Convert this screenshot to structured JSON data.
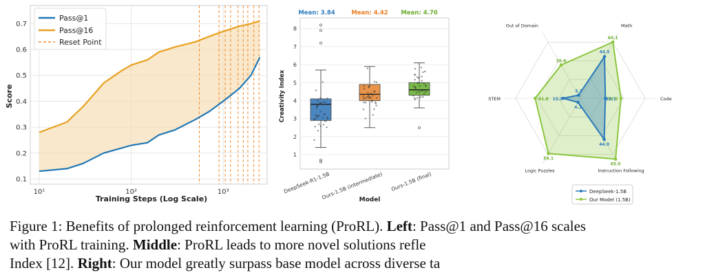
{
  "left_chart": {
    "legend": [
      "Pass@1",
      "Pass@16",
      "Reset Point"
    ],
    "xlabel": "Training Steps (Log Scale)",
    "ylabel": "Score",
    "yticks": [
      "0.1",
      "0.2",
      "0.3",
      "0.4",
      "0.5",
      "0.6",
      "0.7"
    ],
    "xticks": [
      "10¹",
      "10²",
      "10³"
    ]
  },
  "middle_chart": {
    "means": [
      "Mean: 3.84",
      "Mean: 4.42",
      "Mean: 4.70"
    ],
    "xlabel": "Model",
    "ylabel": "Creativity Index",
    "yticks": [
      "1",
      "2",
      "3",
      "4",
      "5",
      "6",
      "7",
      "8"
    ],
    "categories": [
      "DeepSeek-R1-1.5B",
      "Ours-1.5B (intermediate)",
      "Ours-1.5B (final)"
    ]
  },
  "right_chart": {
    "axis_labels": [
      "Math",
      "Code",
      "Instruction Following",
      "Logic Puzzles",
      "STEM",
      "Out of Domain"
    ],
    "ours_value_labels": [
      "60.1",
      "37.5",
      "65.0",
      "59.1",
      "41.8",
      "35.6"
    ],
    "base_value_labels": [
      "44.5",
      "23.1",
      "44.0",
      "4.3",
      "15.9",
      "3.3"
    ],
    "legend": [
      "DeepSeek-1.5B",
      "Our Model (1.5B)"
    ]
  },
  "chart_data": [
    {
      "type": "line",
      "xlabel": "Training Steps (Log Scale)",
      "ylabel": "Score",
      "x_scale": "log",
      "xlim": [
        8,
        3000
      ],
      "ylim": [
        0.08,
        0.77
      ],
      "series": [
        {
          "name": "Pass@1",
          "color": "#1f77b4",
          "x": [
            10,
            20,
            30,
            50,
            80,
            100,
            150,
            200,
            300,
            500,
            700,
            1000,
            1500,
            2000,
            2500
          ],
          "y": [
            0.13,
            0.14,
            0.16,
            0.2,
            0.22,
            0.23,
            0.24,
            0.27,
            0.29,
            0.33,
            0.36,
            0.4,
            0.45,
            0.5,
            0.57
          ]
        },
        {
          "name": "Pass@16",
          "color": "#e8a020",
          "x": [
            10,
            20,
            30,
            40,
            50,
            80,
            100,
            150,
            200,
            300,
            500,
            700,
            1000,
            1500,
            2000,
            2500
          ],
          "y": [
            0.28,
            0.32,
            0.38,
            0.43,
            0.47,
            0.52,
            0.54,
            0.56,
            0.59,
            0.61,
            0.63,
            0.65,
            0.67,
            0.69,
            0.7,
            0.71
          ]
        }
      ],
      "reset_points": [
        550,
        900,
        1050,
        1200,
        1450,
        1650,
        1850,
        2150,
        2450
      ]
    },
    {
      "type": "box",
      "xlabel": "Model",
      "ylabel": "Creativity Index",
      "ylim": [
        0.2,
        8.6
      ],
      "categories": [
        "DeepSeek-R1-1.5B",
        "Ours-1.5B (intermediate)",
        "Ours-1.5B (final)"
      ],
      "series": [
        {
          "name": "DeepSeek-R1-1.5B",
          "color": "#4a86c0",
          "mean": 3.84,
          "whisker_low": 1.4,
          "q1": 2.9,
          "median": 3.8,
          "q3": 4.1,
          "whisker_high": 5.7,
          "outliers": [
            7.2,
            7.9,
            8.2,
            0.7,
            0.6
          ]
        },
        {
          "name": "Ours-1.5B (intermediate)",
          "color": "#e9944a",
          "mean": 4.42,
          "whisker_low": 2.5,
          "q1": 4.0,
          "median": 4.35,
          "q3": 4.9,
          "whisker_high": 5.9,
          "outliers": []
        },
        {
          "name": "Ours-1.5B (final)",
          "color": "#79b94a",
          "mean": 4.7,
          "whisker_low": 3.6,
          "q1": 4.3,
          "median": 4.6,
          "q3": 5.0,
          "whisker_high": 6.1,
          "outliers": [
            2.5
          ]
        }
      ]
    },
    {
      "type": "radar",
      "axes": [
        "Math",
        "Code",
        "Instruction Following",
        "Logic Puzzles",
        "STEM",
        "Out of Domain"
      ],
      "series": [
        {
          "name": "DeepSeek-1.5B",
          "color": "#2b7bba",
          "values": [
            44.5,
            23.1,
            44.0,
            4.3,
            15.9,
            3.3
          ]
        },
        {
          "name": "Our Model (1.5B)",
          "color": "#8cc63f",
          "values": [
            60.1,
            37.5,
            65.0,
            59.1,
            41.8,
            35.6
          ]
        }
      ]
    }
  ],
  "caption": {
    "line1_a": "Figure 1: Benefits of prolonged reinforcement learning (ProRL). ",
    "line1_b": "Left",
    "line1_c": ": Pass@1 and Pass@16 scales",
    "line2_a": "with ProRL training. ",
    "line2_b": "Middle",
    "line2_c": ": ProRL leads to more novel solutions refle",
    "line3_a": "Index [12]. ",
    "line3_b": "Right",
    "line3_c": ": Our model greatly surpass base model across diverse ta"
  }
}
